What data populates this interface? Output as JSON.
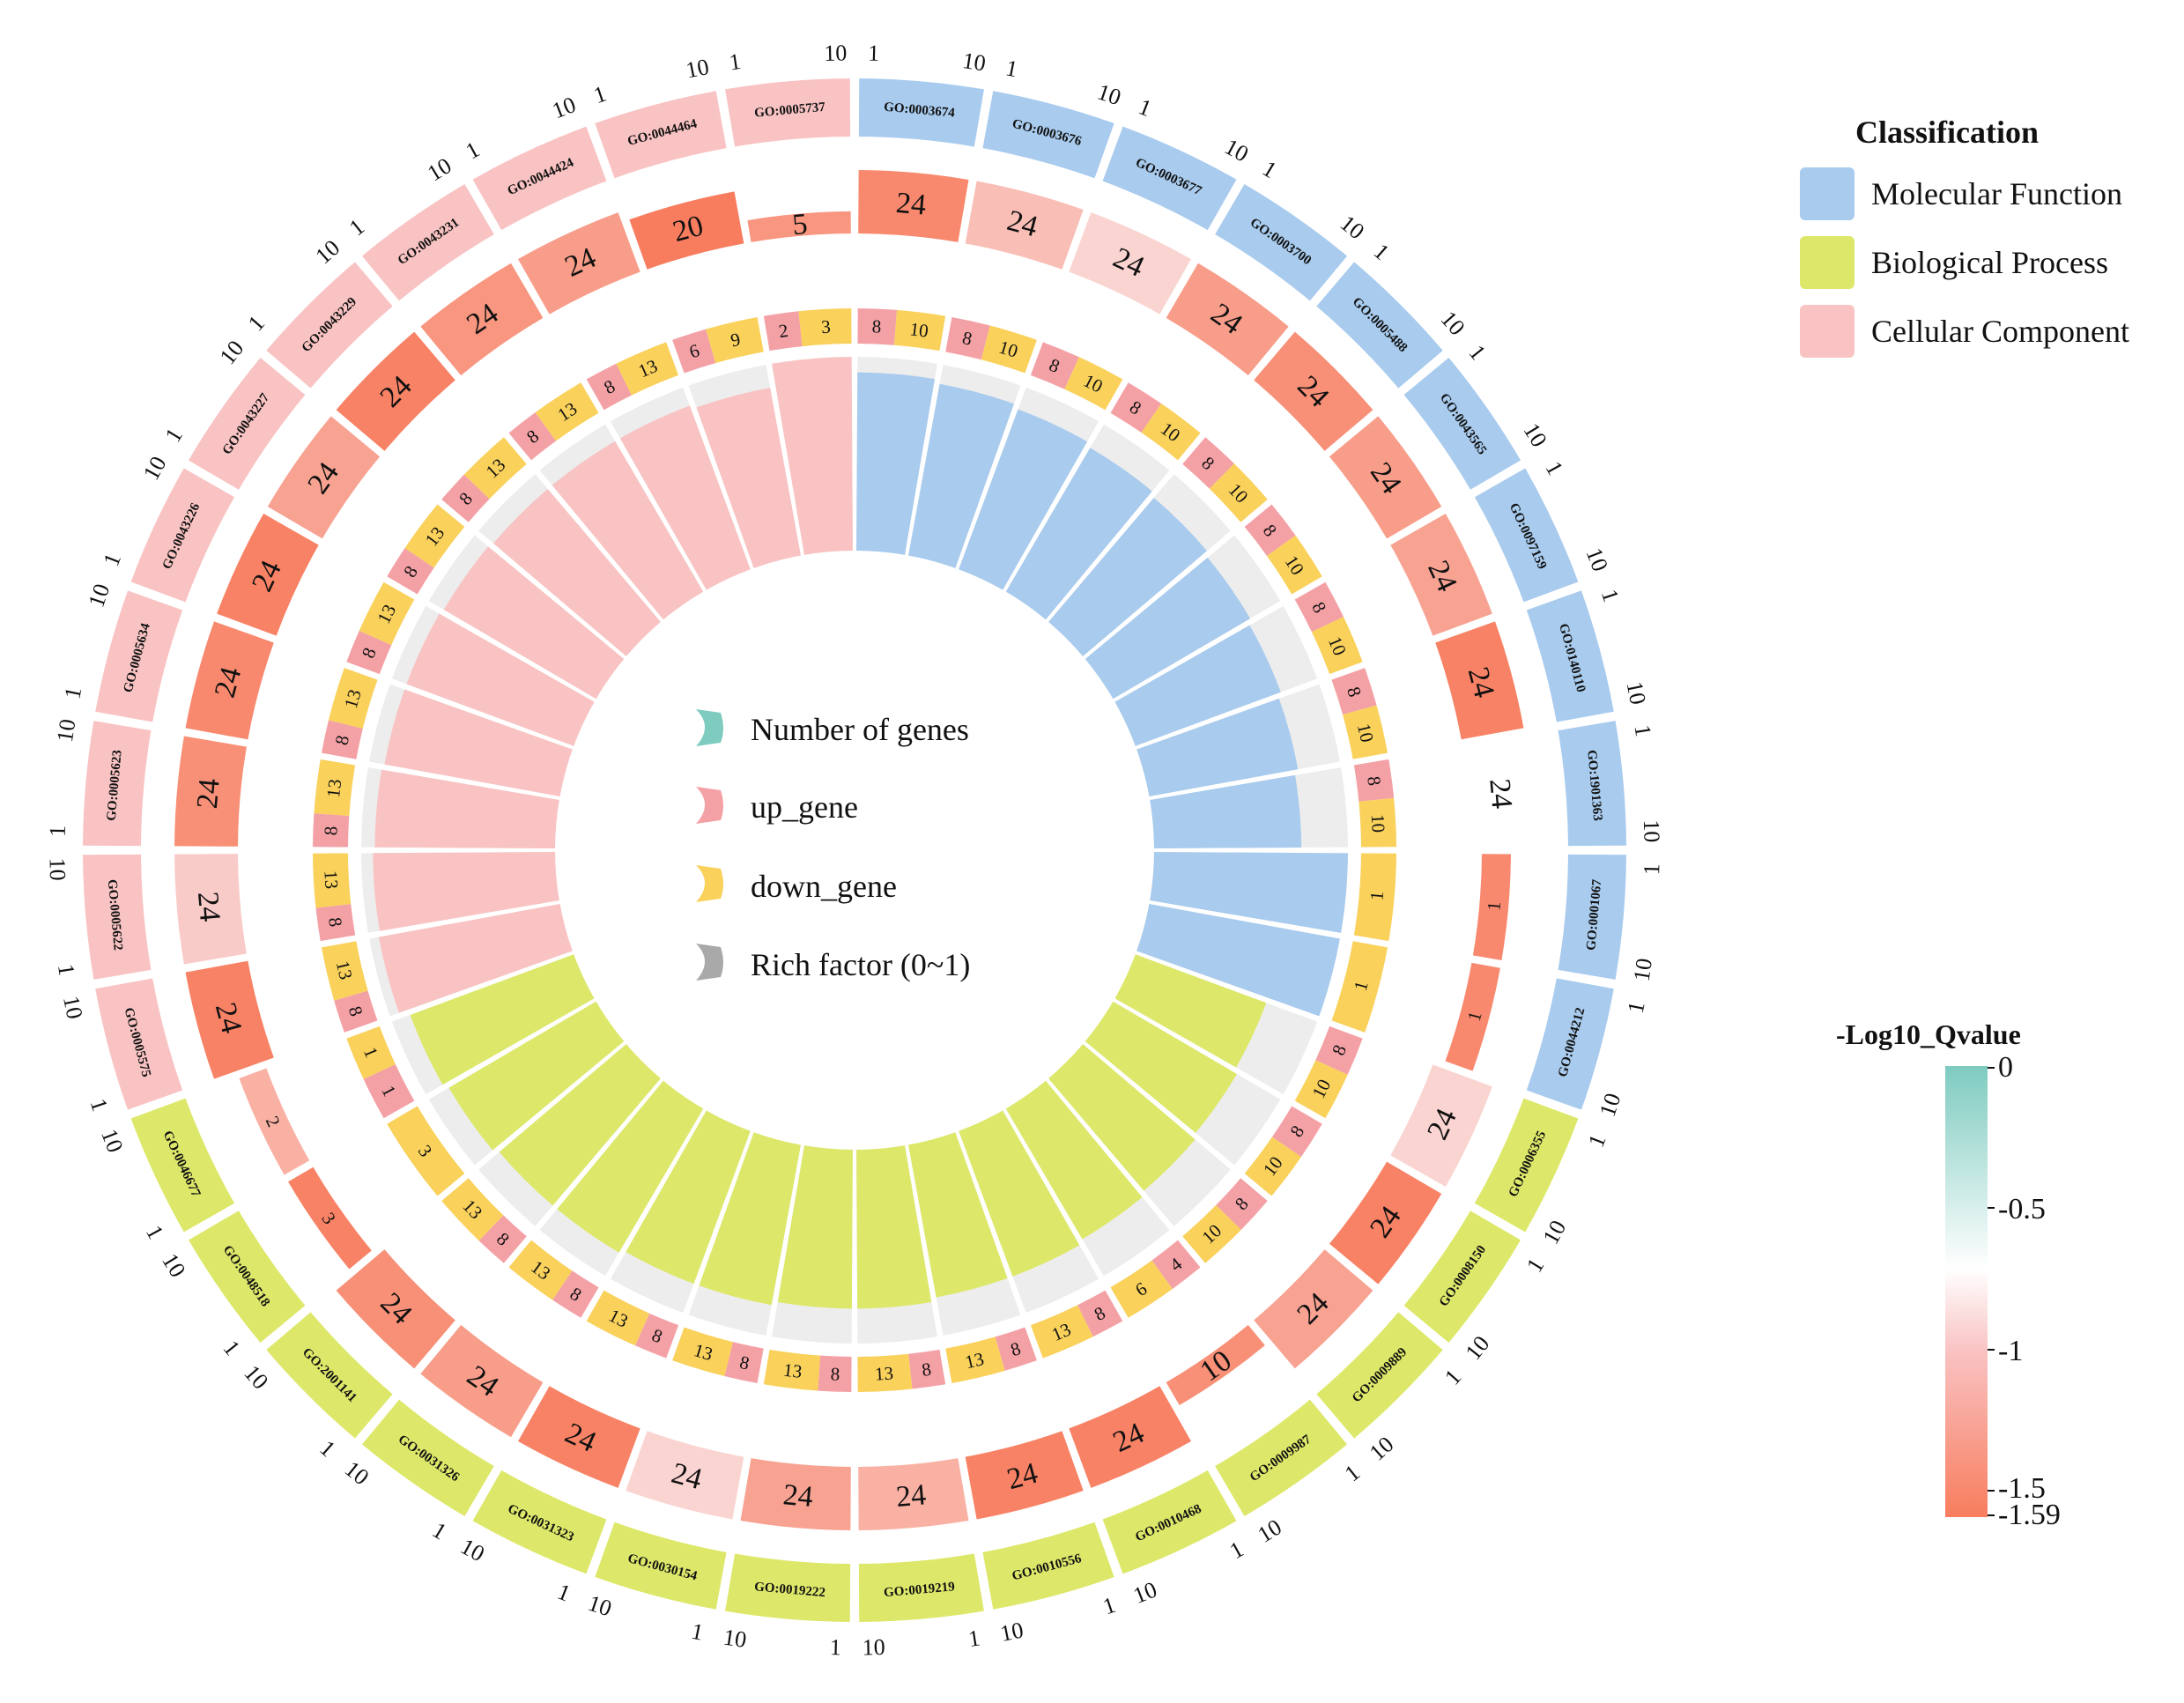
{
  "chart_data": {
    "type": "circular-go-enrichment",
    "center_legend": {
      "items": [
        {
          "label": "Number of genes",
          "color": "#7ECBC0"
        },
        {
          "label": "up_gene",
          "color": "#F4A1A6"
        },
        {
          "label": "down_gene",
          "color": "#F9D15B"
        },
        {
          "label": "Rich factor (0~1)",
          "color": "#A9A9A9"
        }
      ]
    },
    "classification_legend": {
      "title": "Classification",
      "items": [
        {
          "label": "Molecular Function",
          "color": "#A8CBEE"
        },
        {
          "label": "Biological Process",
          "color": "#DDE86A"
        },
        {
          "label": "Cellular Component",
          "color": "#F9C3C3"
        }
      ]
    },
    "colorbar": {
      "title": "-Log10_Qvalue",
      "range": [
        -1.59,
        0
      ],
      "ticks": [
        "0",
        "-0.5",
        "-1",
        "-1.5",
        "-1.59"
      ],
      "colors": [
        "#7ECBC0",
        "#FFFFFF",
        "#F9C3C3",
        "#F87D5E"
      ]
    },
    "axis_ticks": [
      "1",
      "10"
    ],
    "terms": [
      {
        "go": "GO:0003674",
        "class": "MF",
        "genes": "24",
        "q": -1.5,
        "up": "8",
        "down": "10",
        "rich": 0.92
      },
      {
        "go": "GO:0003676",
        "class": "MF",
        "genes": "24",
        "q": -1.1,
        "up": "8",
        "down": "10",
        "rich": 0.9
      },
      {
        "go": "GO:0003677",
        "class": "MF",
        "genes": "24",
        "q": -0.95,
        "up": "8",
        "down": "10",
        "rich": 0.88
      },
      {
        "go": "GO:0003700",
        "class": "MF",
        "genes": "24",
        "q": -1.35,
        "up": "8",
        "down": "10",
        "rich": 0.86
      },
      {
        "go": "GO:0005488",
        "class": "MF",
        "genes": "24",
        "q": -1.45,
        "up": "8",
        "down": "10",
        "rich": 0.84
      },
      {
        "go": "GO:0043565",
        "class": "MF",
        "genes": "24",
        "q": -1.35,
        "up": "8",
        "down": "10",
        "rich": 0.82
      },
      {
        "go": "GO:0097159",
        "class": "MF",
        "genes": "24",
        "q": -1.3,
        "up": "8",
        "down": "10",
        "rich": 0.8
      },
      {
        "go": "GO:0140110",
        "class": "MF",
        "genes": "24",
        "q": -1.55,
        "up": "8",
        "down": "10",
        "rich": 0.78
      },
      {
        "go": "GO:1901363",
        "class": "MF",
        "genes": "24",
        "q": -0.7,
        "up": "8",
        "down": "10",
        "rich": 0.76
      },
      {
        "go": "GO:0001067",
        "class": "MF",
        "genes": "1",
        "q": -1.5,
        "up": "",
        "down": "1",
        "rich": 1.0
      },
      {
        "go": "GO:0044212",
        "class": "MF",
        "genes": "1",
        "q": -1.5,
        "up": "",
        "down": "1",
        "rich": 1.0
      },
      {
        "go": "GO:0006355",
        "class": "BP",
        "genes": "24",
        "q": -0.95,
        "up": "8",
        "down": "10",
        "rich": 0.72
      },
      {
        "go": "GO:0008150",
        "class": "BP",
        "genes": "24",
        "q": -1.55,
        "up": "8",
        "down": "10",
        "rich": 0.74
      },
      {
        "go": "GO:0009889",
        "class": "BP",
        "genes": "24",
        "q": -1.3,
        "up": "8",
        "down": "10",
        "rich": 0.76
      },
      {
        "go": "GO:0009987",
        "class": "BP",
        "genes": "10",
        "q": -1.45,
        "up": "4",
        "down": "6",
        "rich": 0.78
      },
      {
        "go": "GO:0010468",
        "class": "BP",
        "genes": "24",
        "q": -1.55,
        "up": "8",
        "down": "13",
        "rich": 0.8
      },
      {
        "go": "GO:0010556",
        "class": "BP",
        "genes": "24",
        "q": -1.55,
        "up": "8",
        "down": "13",
        "rich": 0.8
      },
      {
        "go": "GO:0019219",
        "class": "BP",
        "genes": "24",
        "q": -1.2,
        "up": "8",
        "down": "13",
        "rich": 0.82
      },
      {
        "go": "GO:0019222",
        "class": "BP",
        "genes": "24",
        "q": -1.3,
        "up": "8",
        "down": "13",
        "rich": 0.82
      },
      {
        "go": "GO:0030154",
        "class": "BP",
        "genes": "24",
        "q": -0.95,
        "up": "8",
        "down": "13",
        "rich": 0.84
      },
      {
        "go": "GO:0031323",
        "class": "BP",
        "genes": "24",
        "q": -1.55,
        "up": "8",
        "down": "13",
        "rich": 0.84
      },
      {
        "go": "GO:0031326",
        "class": "BP",
        "genes": "24",
        "q": -1.35,
        "up": "8",
        "down": "13",
        "rich": 0.86
      },
      {
        "go": "GO:2001141",
        "class": "BP",
        "genes": "24",
        "q": -1.45,
        "up": "8",
        "down": "13",
        "rich": 0.86
      },
      {
        "go": "GO:0048518",
        "class": "BP",
        "genes": "3",
        "q": -1.55,
        "up": "",
        "down": "3",
        "rich": 0.88
      },
      {
        "go": "GO:0046677",
        "class": "BP",
        "genes": "2",
        "q": -1.2,
        "up": "1",
        "down": "1",
        "rich": 0.9
      },
      {
        "go": "GO:0005575",
        "class": "CC",
        "genes": "24",
        "q": -1.55,
        "up": "8",
        "down": "13",
        "rich": 0.95
      },
      {
        "go": "GO:0005622",
        "class": "CC",
        "genes": "24",
        "q": -1.0,
        "up": "8",
        "down": "13",
        "rich": 0.94
      },
      {
        "go": "GO:0005623",
        "class": "CC",
        "genes": "24",
        "q": -1.45,
        "up": "8",
        "down": "13",
        "rich": 0.93
      },
      {
        "go": "GO:0005634",
        "class": "CC",
        "genes": "24",
        "q": -1.5,
        "up": "8",
        "down": "13",
        "rich": 0.92
      },
      {
        "go": "GO:0043226",
        "class": "CC",
        "genes": "24",
        "q": -1.55,
        "up": "8",
        "down": "13",
        "rich": 0.92
      },
      {
        "go": "GO:0043227",
        "class": "CC",
        "genes": "24",
        "q": -1.3,
        "up": "8",
        "down": "13",
        "rich": 0.91
      },
      {
        "go": "GO:0043229",
        "class": "CC",
        "genes": "24",
        "q": -1.55,
        "up": "8",
        "down": "13",
        "rich": 0.9
      },
      {
        "go": "GO:0043231",
        "class": "CC",
        "genes": "24",
        "q": -1.4,
        "up": "8",
        "down": "13",
        "rich": 0.9
      },
      {
        "go": "GO:0044424",
        "class": "CC",
        "genes": "24",
        "q": -1.35,
        "up": "8",
        "down": "13",
        "rich": 0.9
      },
      {
        "go": "GO:0044464",
        "class": "CC",
        "genes": "20",
        "q": -1.59,
        "up": "6",
        "down": "9",
        "rich": 0.88
      },
      {
        "go": "GO:0005737",
        "class": "CC",
        "genes": "5",
        "q": -1.4,
        "up": "2",
        "down": "3",
        "rich": 1.0
      }
    ]
  }
}
